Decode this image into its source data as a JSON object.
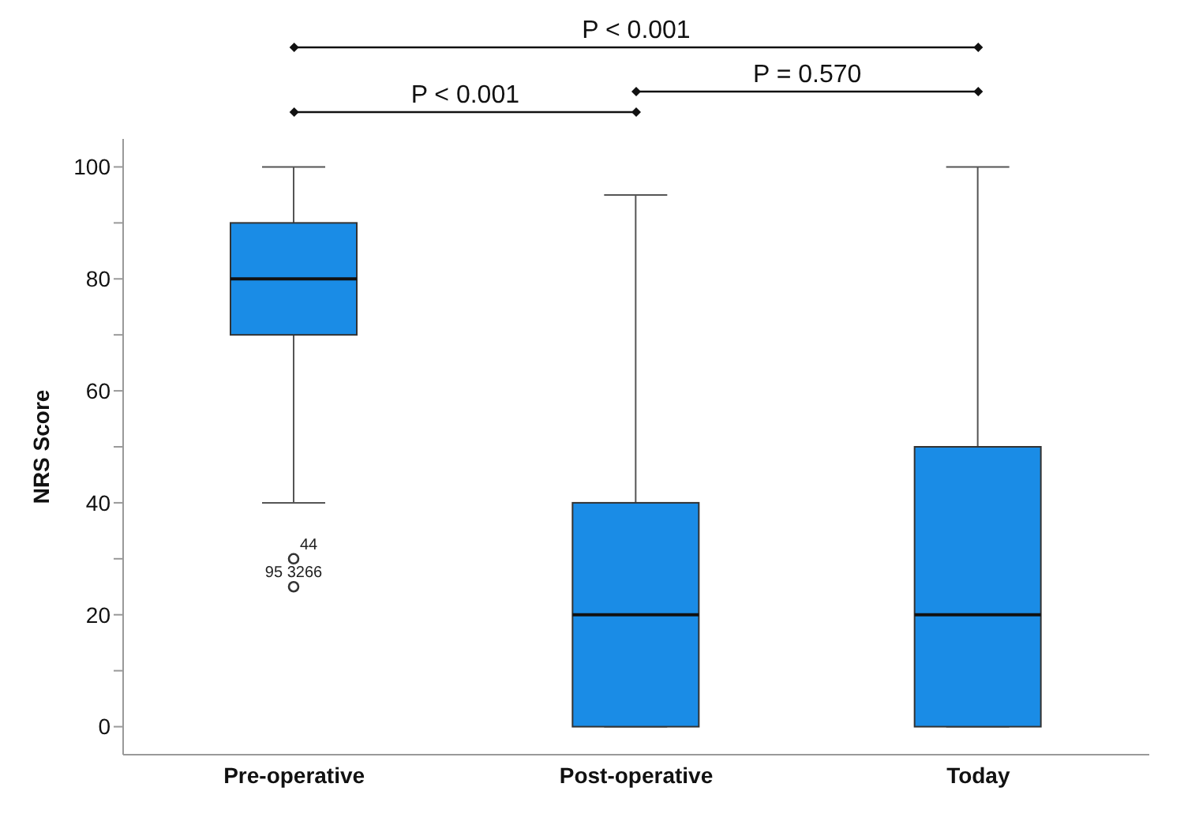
{
  "chart_data": {
    "type": "box",
    "ylabel": "NRS Score",
    "categories": [
      "Pre-operative",
      "Post-operative",
      "Today"
    ],
    "color": "#1a8ce6",
    "boxes": [
      {
        "low": 40,
        "q1": 70,
        "median": 80,
        "q3": 90,
        "high": 100,
        "outliers": [
          30,
          25
        ]
      },
      {
        "low": 0,
        "q1": 0,
        "median": 20,
        "q3": 40,
        "high": 95
      },
      {
        "low": 0,
        "q1": 0,
        "median": 20,
        "q3": 50,
        "high": 100
      }
    ],
    "ylim": [
      -5,
      105
    ],
    "yticks": [
      0,
      {
        "value": 10,
        "label": null
      },
      20,
      {
        "value": 30,
        "label": null
      },
      40,
      {
        "value": 50,
        "label": null
      },
      60,
      {
        "value": 70,
        "label": null
      },
      80,
      {
        "value": 90,
        "label": null
      },
      100
    ],
    "annotations": [
      "P < 0.001",
      "P < 0.001",
      "P = 0.570",
      "44",
      "95 3266"
    ]
  }
}
